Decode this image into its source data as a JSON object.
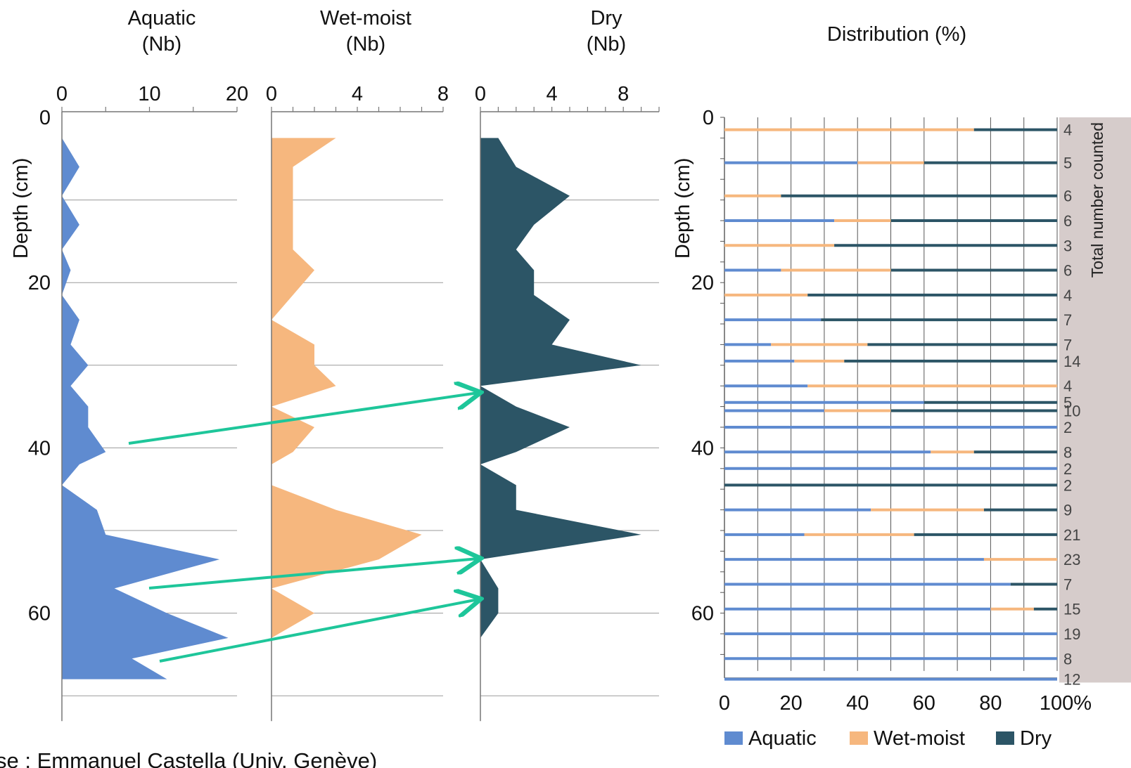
{
  "colors": {
    "aquatic": "#5f8bd0",
    "wet_moist": "#f6b77e",
    "dry": "#2c5566",
    "arrow": "#1ec69a",
    "count_band": "#d6cccb",
    "grid": "#9a9a9a"
  },
  "credit": "se : Emmanuel Castella (Univ. Genève)",
  "chart_data": [
    {
      "type": "area",
      "title": "Aquatic\n(Nb)",
      "ylabel": "Depth (cm)",
      "xlim": [
        0,
        20
      ],
      "xticks": [
        "0",
        "10",
        "20"
      ],
      "ylim": [
        0,
        70
      ],
      "yticks": [
        "0",
        "20",
        "40",
        "60"
      ],
      "y_reversed": true,
      "series": [
        {
          "depth": [
            2.5,
            6,
            9.5,
            13,
            16,
            18.5,
            21.5,
            24.5,
            27.5,
            30,
            32.5,
            35,
            37.5,
            40.5,
            42,
            44.5,
            47.5,
            50.5,
            53.5,
            57,
            60,
            63,
            65.5,
            68
          ],
          "values": [
            0,
            2,
            0,
            2,
            0,
            1,
            0,
            2,
            1,
            3,
            1,
            3,
            3,
            5,
            2,
            0,
            4,
            5,
            18,
            6,
            12,
            19,
            8,
            12
          ]
        }
      ]
    },
    {
      "type": "area",
      "title": "Wet-moist\n(Nb)",
      "xlim": [
        0,
        8
      ],
      "xticks": [
        "0",
        "4",
        "8"
      ],
      "ylim": [
        0,
        70
      ],
      "y_reversed": true,
      "series": [
        {
          "depth": [
            2.5,
            6,
            9.5,
            13,
            16,
            18.5,
            21.5,
            24.5,
            27.5,
            30,
            32.5,
            35,
            37.5,
            40.5,
            42,
            44.5,
            47.5,
            50.5,
            53.5,
            57,
            60,
            63
          ],
          "values": [
            3,
            1,
            1,
            1,
            1,
            2,
            1,
            0,
            2,
            2,
            3,
            0,
            2,
            1,
            0,
            0,
            3,
            7,
            5,
            0,
            2,
            0
          ]
        }
      ]
    },
    {
      "type": "area",
      "title": "Dry\n(Nb)",
      "xlim": [
        0,
        10
      ],
      "xticks": [
        "0",
        "4",
        "8"
      ],
      "ylim": [
        0,
        70
      ],
      "y_reversed": true,
      "series": [
        {
          "depth": [
            2.5,
            6,
            9.5,
            13,
            16,
            18.5,
            21.5,
            24.5,
            27.5,
            30,
            32.5,
            35,
            37.5,
            40.5,
            42,
            44.5,
            47.5,
            50.5,
            53.5,
            57,
            60,
            63
          ],
          "values": [
            1,
            2,
            5,
            3,
            2,
            3,
            3,
            5,
            4,
            9,
            0,
            2,
            5,
            2,
            0,
            2,
            2,
            9,
            0,
            1,
            1,
            0
          ]
        }
      ]
    },
    {
      "type": "bar",
      "orientation": "horizontal",
      "stacked": true,
      "title": "Distribution (%)",
      "ylabel": "Depth (cm)",
      "y2label": "Total number counted",
      "xlim": [
        0,
        100
      ],
      "xticks": [
        "0",
        "20",
        "40",
        "60",
        "80",
        "100%"
      ],
      "ylim": [
        0,
        68
      ],
      "yticks": [
        "0",
        "20",
        "40",
        "60"
      ],
      "y_reversed": true,
      "legend": "bottom",
      "legend_entries": [
        "Aquatic",
        "Wet-moist",
        "Dry"
      ],
      "depth": [
        1.5,
        5.5,
        9.5,
        12.5,
        15.5,
        18.5,
        21.5,
        24.5,
        27.5,
        29.5,
        32.5,
        34.5,
        35.5,
        37.5,
        40.5,
        42.5,
        44.5,
        47.5,
        50.5,
        53.5,
        56.5,
        59.5,
        62.5,
        65.5,
        68
      ],
      "counts": [
        "4",
        "5",
        "6",
        "6",
        "3",
        "6",
        "4",
        "7",
        "7",
        "14",
        "4",
        "5",
        "10",
        "2",
        "8",
        "2",
        "2",
        "9",
        "21",
        "23",
        "7",
        "15",
        "19",
        "8",
        "12"
      ],
      "series": [
        {
          "name": "Aquatic",
          "values": [
            0,
            40,
            0,
            33,
            0,
            17,
            0,
            29,
            14,
            21,
            25,
            60,
            30,
            100,
            62,
            100,
            0,
            44,
            24,
            78,
            86,
            80,
            100,
            100,
            100
          ]
        },
        {
          "name": "Wet-moist",
          "values": [
            75,
            20,
            17,
            17,
            33,
            33,
            25,
            0,
            29,
            15,
            75,
            0,
            20,
            0,
            13,
            0,
            0,
            34,
            33,
            22,
            0,
            13,
            0,
            0,
            0
          ]
        },
        {
          "name": "Dry",
          "values": [
            25,
            40,
            83,
            50,
            67,
            50,
            75,
            71,
            57,
            64,
            0,
            40,
            50,
            0,
            25,
            0,
            100,
            22,
            43,
            0,
            14,
            7,
            0,
            0,
            0
          ]
        }
      ]
    }
  ]
}
